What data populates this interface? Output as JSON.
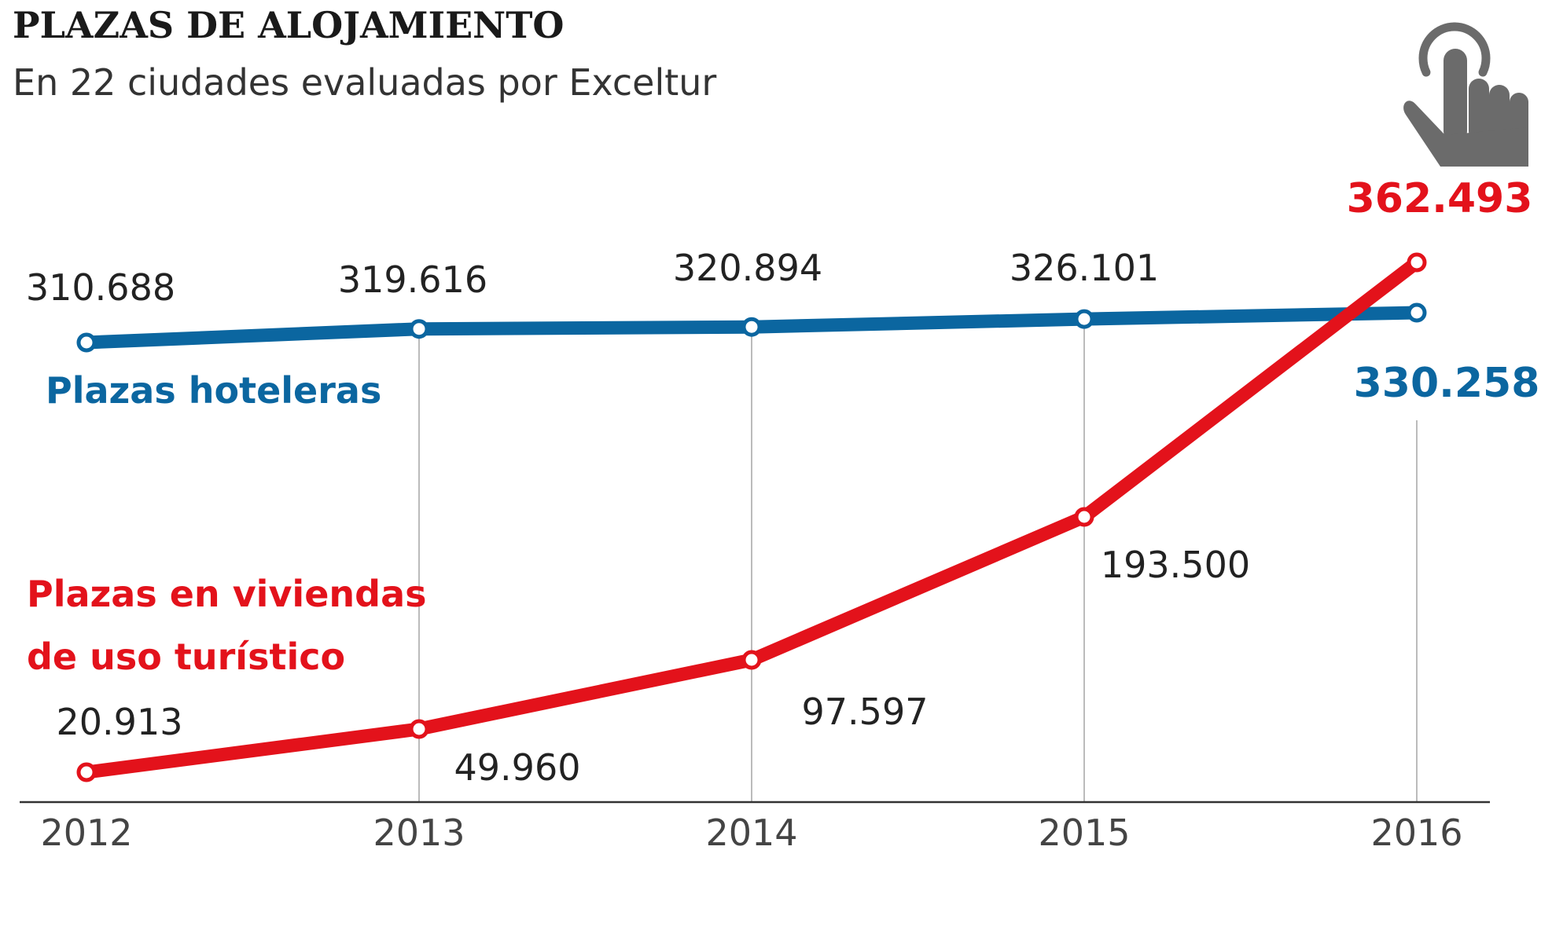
{
  "header": {
    "title": "PLAZAS DE ALOJAMIENTO",
    "subtitle": "En 22 ciudades evaluadas por Exceltur"
  },
  "icons": {
    "touch": "hand-pointer-icon"
  },
  "colors": {
    "hotel": "#0b66a0",
    "vivienda": "#e3121b",
    "gridline": "#bbbbbb",
    "axis": "#333333",
    "icon": "#6b6b6b"
  },
  "chart_data": {
    "type": "line",
    "categories": [
      "2012",
      "2013",
      "2014",
      "2015",
      "2016"
    ],
    "ylim": [
      0,
      400000
    ],
    "grid": "vertical lines at each year",
    "legend": "inline series labels",
    "series": [
      {
        "name": "Plazas hoteleras",
        "color": "#0b66a0",
        "values": [
          310688,
          319616,
          320894,
          326101,
          330258
        ],
        "labels": [
          "310.688",
          "319.616",
          "320.894",
          "326.101",
          "330.258"
        ]
      },
      {
        "name": "Plazas en viviendas de uso turístico",
        "name_lines": [
          "Plazas en viviendas",
          "de uso turístico"
        ],
        "color": "#e3121b",
        "values": [
          20913,
          49960,
          97597,
          193500,
          362493
        ],
        "labels": [
          "20.913",
          "49.960",
          "97.597",
          "193.500",
          "362.493"
        ]
      }
    ]
  }
}
